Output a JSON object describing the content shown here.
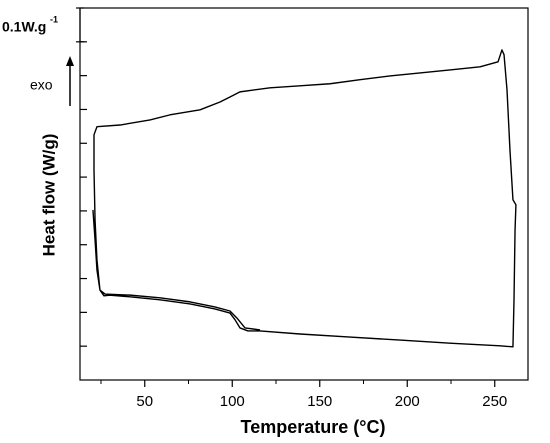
{
  "chart_data": {
    "type": "line",
    "xlabel": "Temperature (°C)",
    "ylabel": "Heat flow (W/g)",
    "scale_bar_label": "0.1W.g",
    "scale_bar_label_sup": "-1",
    "scale_bar_value": 0.1,
    "direction_label": "exo",
    "color": "#000000",
    "xlim": [
      13,
      269
    ],
    "xticks": [
      50,
      100,
      150,
      200,
      250
    ],
    "xminorticks": [
      25,
      75,
      125,
      175,
      225
    ],
    "ylim": [
      0,
      1.1
    ],
    "yticks": [
      0.1,
      0.2,
      0.3,
      0.4,
      0.5,
      0.6,
      0.7,
      0.8,
      0.9,
      1.0
    ],
    "x": [
      20.4,
      21.6,
      22.7,
      24.4,
      26.7,
      30.1,
      41.6,
      58.7,
      75.9,
      90.1,
      98.7,
      101.6,
      104.4,
      109.0,
      115.9,
      138.7,
      167.3,
      195.9,
      224.4,
      253.0,
      260.4,
      261.0,
      261.6,
      262.1,
      260.4,
      258.7,
      257.0,
      255.3,
      254.1,
      251.9,
      241.6,
      224.4,
      207.3,
      190.1,
      173.0,
      155.9,
      138.7,
      121.6,
      104.4,
      98.7,
      93.0,
      81.6,
      64.4,
      53.0,
      35.9,
      22.7,
      21.0,
      21.0,
      21.6,
      22.7,
      24.4,
      27.3,
      41.6,
      58.7,
      75.9,
      90.1,
      98.7,
      102.7,
      107.3,
      115.9
    ],
    "values": [
      0.503,
      0.414,
      0.325,
      0.266,
      0.249,
      0.251,
      0.246,
      0.237,
      0.225,
      0.21,
      0.198,
      0.178,
      0.154,
      0.145,
      0.145,
      0.136,
      0.127,
      0.118,
      0.109,
      0.101,
      0.098,
      0.237,
      0.444,
      0.518,
      0.533,
      0.68,
      0.858,
      0.962,
      0.976,
      0.941,
      0.926,
      0.917,
      0.908,
      0.899,
      0.888,
      0.876,
      0.87,
      0.864,
      0.852,
      0.837,
      0.822,
      0.799,
      0.784,
      0.769,
      0.754,
      0.749,
      0.725,
      0.621,
      0.473,
      0.355,
      0.266,
      0.254,
      0.251,
      0.243,
      0.231,
      0.216,
      0.204,
      0.183,
      0.154,
      0.148
    ]
  }
}
